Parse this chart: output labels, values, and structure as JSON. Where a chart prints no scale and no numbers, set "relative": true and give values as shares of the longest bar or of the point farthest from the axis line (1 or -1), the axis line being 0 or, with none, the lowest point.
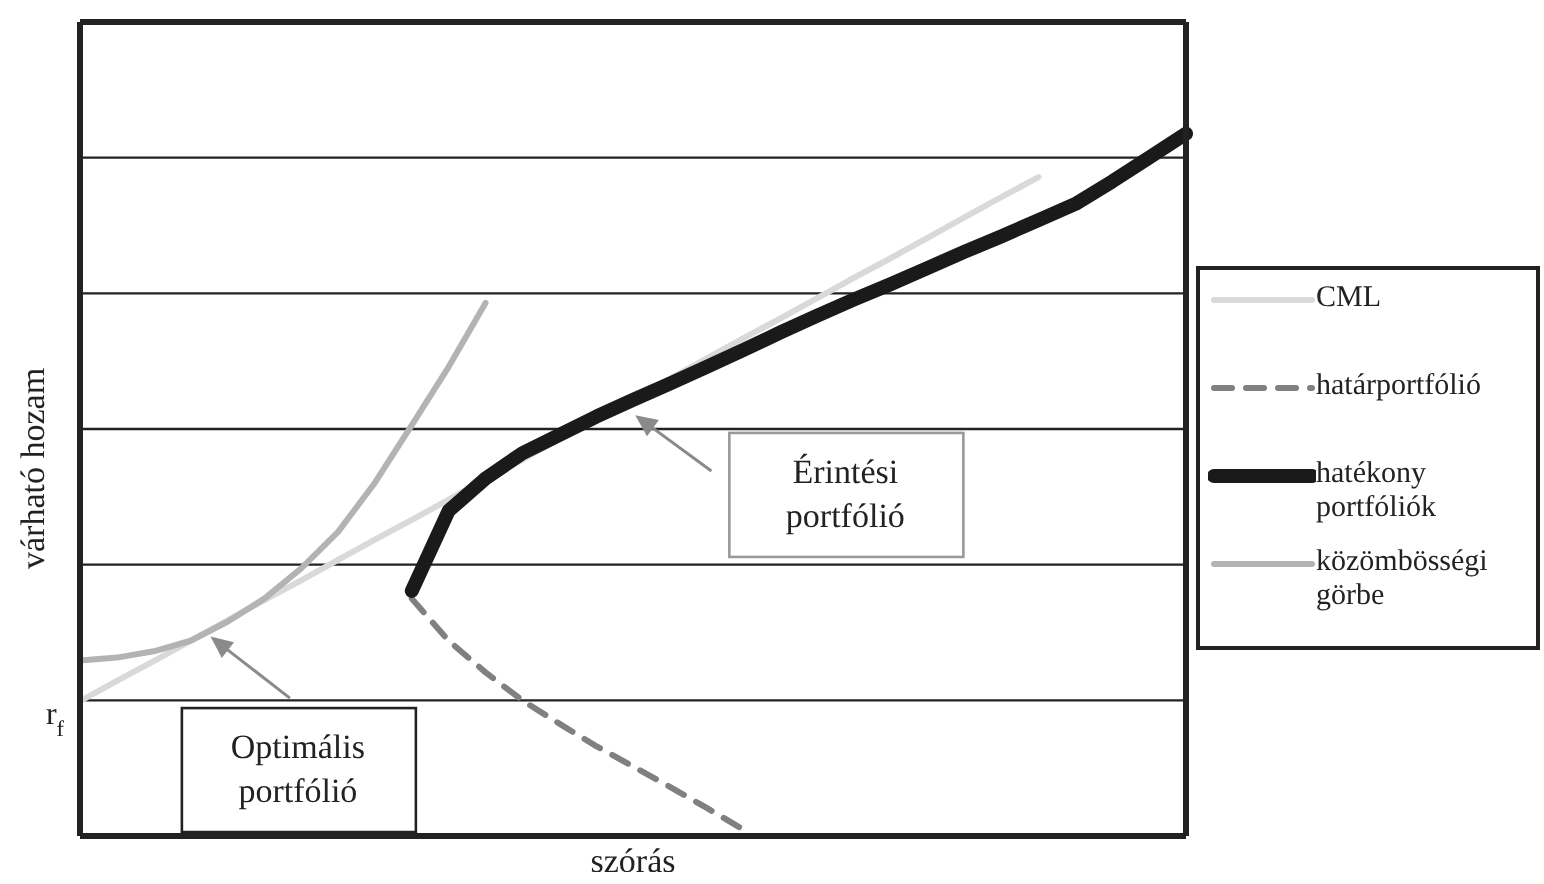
{
  "chart_data": {
    "type": "line",
    "relative": true,
    "xlabel": "szórás",
    "ylabel": "várható hozam",
    "grid": "y",
    "legend": "right",
    "marker": "none",
    "categories": [
      null,
      null,
      null,
      null,
      null,
      null,
      null,
      null,
      null,
      null,
      null,
      null,
      null,
      null,
      null,
      null,
      null,
      null,
      null,
      null,
      null,
      null,
      null,
      null,
      null,
      null,
      null,
      null,
      null,
      null,
      null
    ],
    "series": [
      {
        "name": "CML",
        "color": "#d9d9d9",
        "values": [
          0.192,
          0.221,
          0.249,
          0.278,
          0.307,
          0.336,
          0.364,
          0.393,
          0.422,
          0.45,
          0.479,
          0.508,
          0.536,
          0.565,
          0.594,
          0.623,
          0.651,
          0.68,
          0.709,
          0.737,
          0.766,
          0.795,
          0.823,
          0.852,
          0.881,
          0.91,
          0.938,
          null,
          null,
          null,
          null
        ]
      },
      {
        "name": "határportfólió",
        "color": "#808080",
        "line_style": "dashed",
        "values": [
          null,
          null,
          null,
          null,
          null,
          null,
          null,
          null,
          null,
          0.338,
          0.278,
          0.233,
          0.193,
          0.16,
          0.128,
          0.099,
          0.07,
          0.04,
          0.009,
          null,
          null,
          null,
          null,
          null,
          null,
          null,
          null,
          null,
          null,
          null,
          null
        ]
      },
      {
        "name": "hatékony portfóliók",
        "color": "#1a1a1a",
        "values": [
          null,
          null,
          null,
          null,
          null,
          null,
          null,
          null,
          null,
          0.349,
          0.463,
          0.509,
          0.545,
          0.571,
          0.597,
          0.621,
          0.644,
          0.668,
          0.692,
          0.717,
          0.741,
          0.764,
          0.786,
          0.809,
          0.832,
          0.854,
          0.877,
          0.9,
          0.932,
          0.966,
          1.0
        ]
      },
      {
        "name": "közömbösségi görbe",
        "color": "#b3b3b3",
        "values": [
          0.25,
          0.254,
          0.263,
          0.278,
          0.305,
          0.338,
          0.381,
          0.433,
          0.503,
          0.585,
          0.668,
          0.759,
          null,
          null,
          null,
          null,
          null,
          null,
          null,
          null,
          null,
          null,
          null,
          null,
          null,
          null,
          null,
          null,
          null,
          null,
          null
        ]
      }
    ],
    "annotations": [
      "r$_{f}$",
      "Optimális portfólió",
      "Érintési portfólió"
    ]
  }
}
